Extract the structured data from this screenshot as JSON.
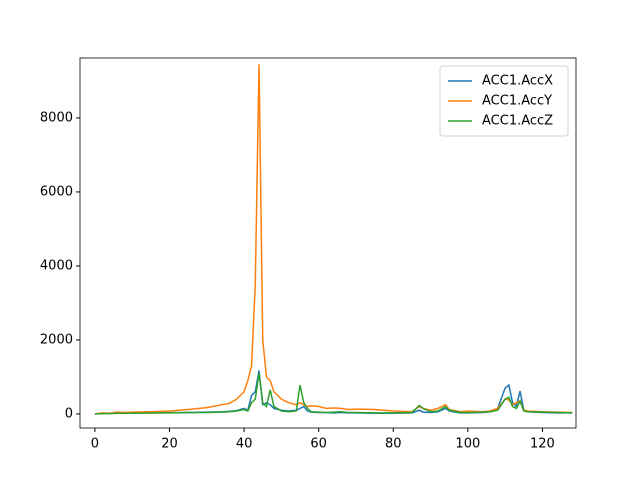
{
  "chart_data": {
    "type": "line",
    "x": [
      0,
      2,
      4,
      6,
      8,
      10,
      15,
      20,
      25,
      30,
      34,
      36,
      38,
      40,
      41,
      42,
      43,
      44,
      45,
      46,
      47,
      48,
      50,
      52,
      54,
      55,
      56,
      57,
      58,
      60,
      62,
      64,
      66,
      68,
      70,
      75,
      80,
      85,
      87,
      88,
      90,
      92,
      94,
      95,
      96,
      98,
      100,
      104,
      106,
      108,
      110,
      111,
      112,
      113,
      114,
      115,
      116,
      120,
      124,
      128
    ],
    "series": [
      {
        "name": "ACC1.AccX",
        "color": "#1f77b4",
        "values": [
          0,
          20,
          15,
          30,
          25,
          30,
          30,
          35,
          40,
          50,
          60,
          70,
          90,
          150,
          100,
          500,
          600,
          1170,
          250,
          300,
          250,
          150,
          100,
          80,
          100,
          150,
          200,
          80,
          50,
          40,
          40,
          30,
          40,
          30,
          30,
          20,
          20,
          30,
          100,
          50,
          40,
          60,
          150,
          80,
          60,
          30,
          30,
          40,
          60,
          150,
          700,
          780,
          300,
          200,
          620,
          100,
          60,
          40,
          30,
          30
        ]
      },
      {
        "name": "ACC1.AccY",
        "color": "#ff7f0e",
        "values": [
          0,
          30,
          20,
          50,
          40,
          50,
          60,
          80,
          120,
          170,
          250,
          280,
          400,
          600,
          900,
          1300,
          3500,
          9450,
          2000,
          1000,
          900,
          600,
          400,
          300,
          250,
          300,
          250,
          200,
          220,
          200,
          150,
          160,
          150,
          120,
          130,
          120,
          80,
          60,
          200,
          150,
          100,
          150,
          250,
          120,
          100,
          60,
          80,
          60,
          80,
          150,
          400,
          380,
          250,
          300,
          350,
          100,
          80,
          60,
          50,
          40
        ]
      },
      {
        "name": "ACC1.AccZ",
        "color": "#2ca02c",
        "values": [
          0,
          10,
          10,
          20,
          20,
          20,
          25,
          30,
          35,
          40,
          50,
          60,
          80,
          120,
          80,
          300,
          400,
          1100,
          300,
          200,
          650,
          200,
          80,
          60,
          80,
          780,
          300,
          150,
          60,
          50,
          40,
          50,
          60,
          40,
          40,
          30,
          30,
          40,
          230,
          150,
          60,
          80,
          200,
          100,
          80,
          40,
          40,
          50,
          60,
          100,
          400,
          450,
          200,
          150,
          350,
          80,
          60,
          50,
          40,
          30
        ]
      }
    ],
    "xlim": [
      -4,
      129
    ],
    "ylim": [
      -380,
      9620
    ],
    "xticks": [
      0,
      20,
      40,
      60,
      80,
      100,
      120
    ],
    "yticks": [
      0,
      2000,
      4000,
      6000,
      8000
    ],
    "legend": "upper right"
  }
}
